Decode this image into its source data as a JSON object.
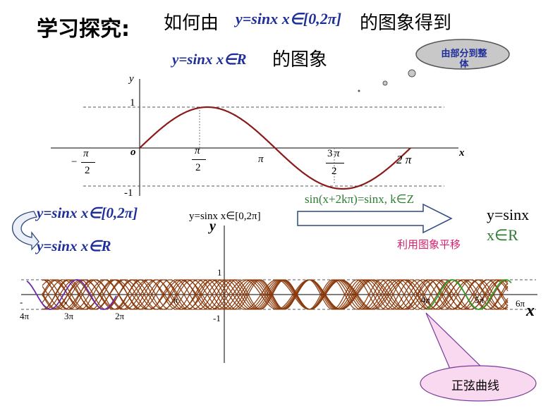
{
  "header": {
    "title": "学习探究:",
    "question_prefix": "如何由",
    "question_func": "y=sinx x∈[0,2π]",
    "question_suffix": "的图象得到",
    "target_func": "y=sinx x∈R",
    "target_suffix": "的图象"
  },
  "cloud": {
    "text": "由部分到整体"
  },
  "top_graph": {
    "y_label": "y",
    "x_label": "x",
    "origin_label": "o",
    "tick_one": "1",
    "tick_neg_one": "-1",
    "tick_neg_pi_over_2_sign": "−",
    "tick_pi_num": "π",
    "tick_den": "2",
    "tick_pi": "π",
    "tick_3": "3",
    "tick_2pi": "2 π",
    "identity": "sin(x+2kπ)=sinx,  k∈Z"
  },
  "left_labels": {
    "line1": "y=sinx   x∈[0,2π]",
    "line2": "y=sinx   x∈R"
  },
  "middle": {
    "partial_label": "y=sinx    x∈[0,2π]",
    "result_line1": "y=sinx",
    "result_line2": "x∈R",
    "method": "利用图象平移"
  },
  "bottom_graph": {
    "y_label": "y",
    "x_label": "x",
    "tick_one": "1",
    "tick_neg_one": "-1",
    "neg4pi_sign": "-",
    "neg4pi": "4π",
    "neg3pi_sign": "-",
    "neg3pi": "3π",
    "neg2pi": "2π",
    "pos_pi": "π",
    "pos4pi": "4π",
    "pos5pi": "5π",
    "pos6pi": "6π"
  },
  "callout": {
    "text": "正弦曲线"
  },
  "colors": {
    "curve": "#8b1a1a",
    "axis_dash": "#444444",
    "arrow_fill": "#ffffff",
    "callout_fill": "#f9d9f0",
    "callout_stroke": "#7a3a9a",
    "purple_curve": "#6a2ca8",
    "green_curve": "#2ea02e",
    "band_curve": "#8b3a0a",
    "cloud_fill": "#c8c8c8"
  }
}
